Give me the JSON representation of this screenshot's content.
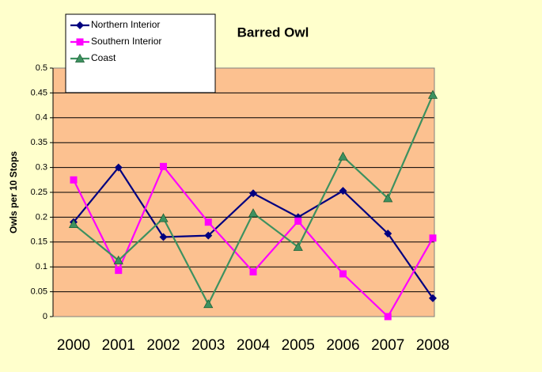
{
  "chart_data": {
    "type": "line",
    "title": "Barred Owl",
    "y_label": "Owls per 10 Stops",
    "categories": [
      "2000",
      "2001",
      "2002",
      "2003",
      "2004",
      "2005",
      "2006",
      "2007",
      "2008"
    ],
    "series": [
      {
        "name": "Northern Interior",
        "color": "#000080",
        "marker": "diamond",
        "values": [
          0.19,
          0.3,
          0.16,
          0.163,
          0.248,
          0.2,
          0.253,
          0.167,
          0.037
        ]
      },
      {
        "name": "Southern Interior",
        "color": "#ff00ff",
        "marker": "square",
        "values": [
          0.275,
          0.093,
          0.302,
          0.19,
          0.09,
          0.192,
          0.086,
          0,
          0.158
        ]
      },
      {
        "name": "Coast",
        "color": "#3d9160",
        "marker": "triangle",
        "values": [
          0.186,
          0.113,
          0.198,
          0.025,
          0.208,
          0.14,
          0.322,
          0.238,
          0.446
        ]
      }
    ],
    "ylim": [
      0,
      0.5
    ],
    "yticks": [
      0,
      0.05,
      0.1,
      0.15,
      0.2,
      0.25,
      0.3,
      0.35,
      0.4,
      0.45,
      0.5
    ],
    "grid": true,
    "legend": "top-left"
  }
}
